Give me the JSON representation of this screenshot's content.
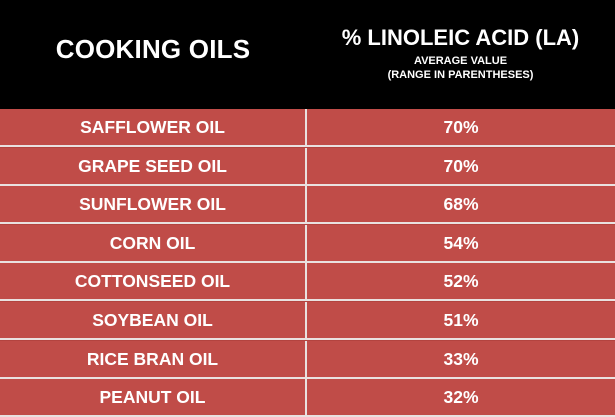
{
  "header": {
    "left_title": "COOKING OILS",
    "right_title": "% LINOLEIC ACID (LA)",
    "right_subtitle_1": "AVERAGE VALUE",
    "right_subtitle_2": "(RANGE IN PARENTHESES)"
  },
  "colors": {
    "header_background": "#000000",
    "row_background": "#c04c48",
    "row_divider": "#e9e1e0",
    "text": "#ffffff"
  },
  "chart_data": {
    "type": "table",
    "columns": [
      "COOKING OILS",
      "% LINOLEIC ACID (LA)"
    ],
    "rows": [
      {
        "oil": "SAFFLOWER OIL",
        "value": "70%"
      },
      {
        "oil": "GRAPE SEED OIL",
        "value": "70%"
      },
      {
        "oil": "SUNFLOWER OIL",
        "value": "68%"
      },
      {
        "oil": "CORN OIL",
        "value": "54%"
      },
      {
        "oil": "COTTONSEED OIL",
        "value": "52%"
      },
      {
        "oil": "SOYBEAN OIL",
        "value": "51%"
      },
      {
        "oil": "RICE BRAN OIL",
        "value": "33%"
      },
      {
        "oil": "PEANUT OIL",
        "value": "32%"
      }
    ]
  }
}
